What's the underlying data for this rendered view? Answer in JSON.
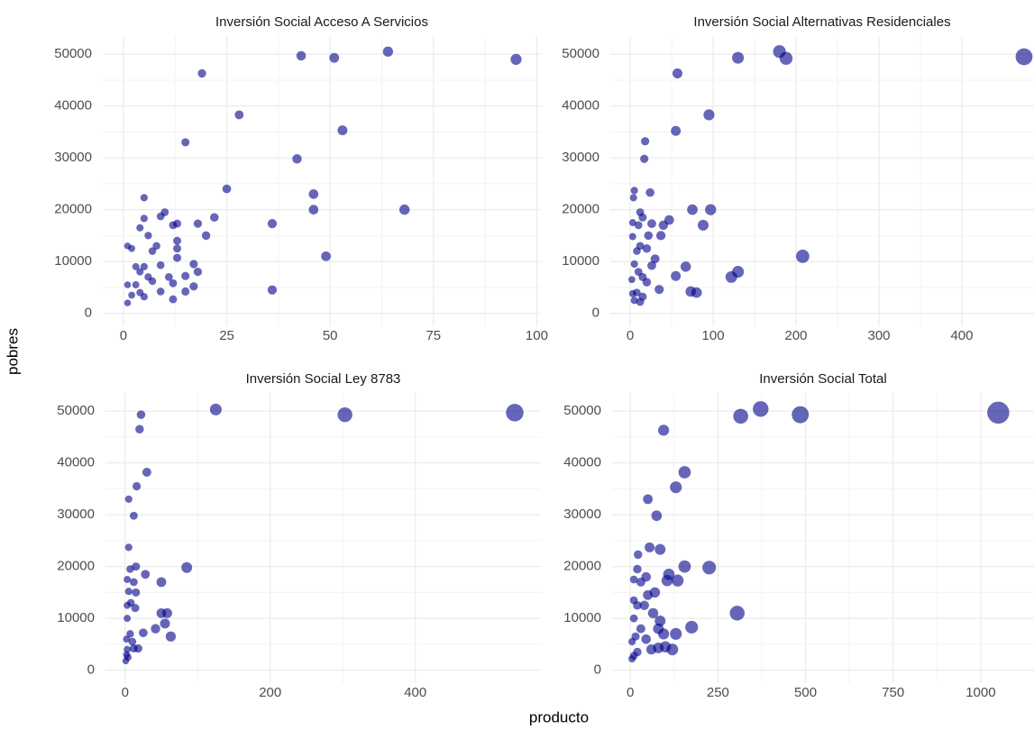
{
  "xlabel": "producto",
  "ylabel": "pobres",
  "chart_data": [
    {
      "type": "scatter",
      "title": "Inversión Social Acceso A Servicios",
      "color": "#00008b",
      "grid": true,
      "xlim": [
        -5,
        101
      ],
      "xticks": [
        0,
        25,
        50,
        75,
        100
      ],
      "ylim": [
        -2500,
        53500
      ],
      "yticks": [
        0,
        10000,
        20000,
        30000,
        40000,
        50000
      ],
      "x": [
        95,
        64,
        51,
        43,
        19,
        28,
        53,
        15,
        42,
        25,
        46,
        5,
        46,
        68,
        10,
        9,
        22,
        5,
        36,
        13,
        12,
        18,
        4,
        20,
        6,
        13,
        8,
        13,
        1,
        7,
        2,
        49,
        13,
        3,
        5,
        9,
        17,
        18,
        4,
        15,
        11,
        6,
        7,
        1,
        3,
        12,
        17,
        36,
        4,
        9,
        15,
        2,
        5,
        12,
        1
      ],
      "values": [
        49000,
        50500,
        49300,
        49700,
        46300,
        38300,
        35300,
        33000,
        29800,
        24000,
        23000,
        22300,
        20000,
        20000,
        19500,
        18700,
        18500,
        18300,
        17300,
        17300,
        17000,
        17300,
        16500,
        15000,
        15000,
        14000,
        13000,
        12500,
        13000,
        12000,
        12500,
        11000,
        10700,
        9000,
        9000,
        9300,
        9500,
        8000,
        8000,
        7200,
        7000,
        7000,
        6200,
        5500,
        5500,
        5800,
        5200,
        4500,
        4000,
        4200,
        4200,
        3500,
        3200,
        2700,
        2000
      ]
    },
    {
      "type": "scatter",
      "title": "Inversión Social Alternativas Residenciales",
      "color": "#00008b",
      "grid": true,
      "xlim": [
        -24,
        487
      ],
      "xticks": [
        0,
        100,
        200,
        300,
        400
      ],
      "ylim": [
        -2500,
        53500
      ],
      "yticks": [
        0,
        10000,
        20000,
        30000,
        40000,
        50000
      ],
      "x": [
        475,
        180,
        188,
        130,
        57,
        95,
        55,
        18,
        17,
        5,
        24,
        4,
        75,
        97,
        12,
        15,
        47,
        40,
        26,
        3,
        10,
        88,
        37,
        22,
        3,
        12,
        8,
        20,
        30,
        208,
        5,
        26,
        67,
        10,
        130,
        55,
        15,
        122,
        2,
        20,
        35,
        73,
        80,
        8,
        3,
        15,
        5,
        12
      ],
      "values": [
        49500,
        50500,
        49200,
        49300,
        46300,
        38300,
        35200,
        33200,
        29800,
        23700,
        23300,
        22300,
        20000,
        20000,
        19500,
        18500,
        18000,
        17000,
        17300,
        17500,
        17000,
        17000,
        15000,
        15000,
        14800,
        13000,
        12000,
        12500,
        10500,
        11000,
        9500,
        9200,
        9000,
        8000,
        8000,
        7200,
        7000,
        7000,
        6500,
        6000,
        4600,
        4200,
        4000,
        4000,
        3800,
        3200,
        2500,
        2200
      ]
    },
    {
      "type": "scatter",
      "title": "Inversión Social Ley 8783",
      "color": "#00008b",
      "grid": true,
      "xlim": [
        -27,
        573
      ],
      "xticks": [
        0,
        200,
        400
      ],
      "ylim": [
        -2500,
        53500
      ],
      "yticks": [
        0,
        10000,
        20000,
        30000,
        40000,
        50000
      ],
      "x": [
        537,
        125,
        303,
        22,
        20,
        30,
        16,
        5,
        12,
        5,
        15,
        85,
        7,
        28,
        50,
        12,
        3,
        5,
        15,
        8,
        3,
        14,
        50,
        58,
        3,
        55,
        42,
        25,
        63,
        7,
        2,
        10,
        18,
        3,
        12,
        2,
        4,
        1
      ],
      "values": [
        49700,
        50300,
        49300,
        49300,
        46500,
        38200,
        35500,
        33000,
        29800,
        23700,
        20000,
        19800,
        19500,
        18500,
        17000,
        17000,
        17500,
        15200,
        15000,
        13000,
        12500,
        12000,
        11000,
        11000,
        10000,
        9000,
        8000,
        7200,
        6500,
        7000,
        6000,
        5500,
        4200,
        4000,
        4200,
        3000,
        2500,
        1800
      ]
    },
    {
      "type": "scatter",
      "title": "Inversión Social Total",
      "color": "#00008b",
      "grid": true,
      "xlim": [
        -52,
        1152
      ],
      "xticks": [
        0,
        250,
        500,
        750,
        1000
      ],
      "ylim": [
        -2500,
        53500
      ],
      "yticks": [
        0,
        10000,
        20000,
        30000,
        40000,
        50000
      ],
      "x": [
        1050,
        485,
        372,
        315,
        95,
        155,
        130,
        50,
        75,
        55,
        85,
        22,
        225,
        155,
        20,
        110,
        45,
        135,
        30,
        105,
        10,
        70,
        50,
        10,
        40,
        20,
        305,
        65,
        10,
        85,
        175,
        80,
        30,
        130,
        95,
        15,
        45,
        5,
        100,
        80,
        60,
        120,
        20,
        10,
        5
      ],
      "values": [
        49700,
        49300,
        50400,
        49000,
        46300,
        38200,
        35300,
        33000,
        29800,
        23700,
        23300,
        22300,
        19800,
        20000,
        19500,
        18500,
        18000,
        17300,
        17000,
        17300,
        17500,
        15000,
        14500,
        13500,
        12500,
        12500,
        11000,
        11000,
        10000,
        9500,
        8300,
        8000,
        8000,
        7000,
        7000,
        6500,
        6000,
        5500,
        4500,
        4300,
        4000,
        4000,
        3500,
        2800,
        2200
      ]
    }
  ]
}
